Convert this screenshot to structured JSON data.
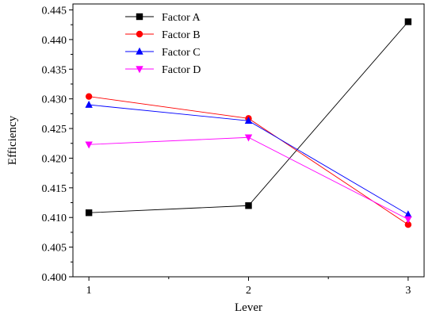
{
  "chart_data": {
    "type": "line",
    "title": "",
    "xlabel": "Lever",
    "ylabel": "Efficiency",
    "x": [
      1,
      2,
      3
    ],
    "xlim": [
      0.9,
      3.1
    ],
    "ylim": [
      0.4,
      0.446
    ],
    "xticks": [
      "1",
      "2",
      "3"
    ],
    "yticks": [
      "0.400",
      "0.405",
      "0.410",
      "0.415",
      "0.420",
      "0.425",
      "0.430",
      "0.435",
      "0.440",
      "0.445"
    ],
    "grid": false,
    "legend_position": "top-left",
    "series": [
      {
        "name": "Factor A",
        "color": "#000000",
        "marker": "square",
        "values": [
          0.4108,
          0.412,
          0.443
        ]
      },
      {
        "name": "Factor B",
        "color": "#ff0000",
        "marker": "circle",
        "values": [
          0.4304,
          0.4267,
          0.4088
        ]
      },
      {
        "name": "Factor C",
        "color": "#0000ff",
        "marker": "triangle-up",
        "values": [
          0.429,
          0.4263,
          0.4105
        ]
      },
      {
        "name": "Factor D",
        "color": "#ff00ff",
        "marker": "triangle-down",
        "values": [
          0.4223,
          0.4235,
          0.4097
        ]
      }
    ]
  }
}
